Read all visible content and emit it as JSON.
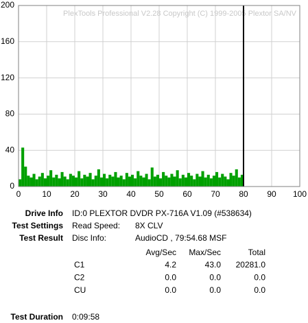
{
  "chart_data": {
    "type": "bar",
    "watermark": "PlexTools Professional V2.28 Copyright (C) 1999-2005 Plextor SA/NV",
    "x": [
      0.5,
      1.5,
      2.5,
      3.5,
      4.5,
      5.5,
      6.5,
      7.5,
      8.5,
      9.5,
      10.5,
      11.5,
      12.5,
      13.5,
      14.5,
      15.5,
      16.5,
      17.5,
      18.5,
      19.5,
      20.5,
      21.5,
      22.5,
      23.5,
      24.5,
      25.5,
      26.5,
      27.5,
      28.5,
      29.5,
      30.5,
      31.5,
      32.5,
      33.5,
      34.5,
      35.5,
      36.5,
      37.5,
      38.5,
      39.5,
      40.5,
      41.5,
      42.5,
      43.5,
      44.5,
      45.5,
      46.5,
      47.5,
      48.5,
      49.5,
      50.5,
      51.5,
      52.5,
      53.5,
      54.5,
      55.5,
      56.5,
      57.5,
      58.5,
      59.5,
      60.5,
      61.5,
      62.5,
      63.5,
      64.5,
      65.5,
      66.5,
      67.5,
      68.5,
      69.5,
      70.5,
      71.5,
      72.5,
      73.5,
      74.5,
      75.5,
      76.5,
      77.5,
      78.5,
      79.5
    ],
    "values": [
      8,
      43,
      22,
      12,
      10,
      14,
      8,
      11,
      15,
      9,
      12,
      18,
      10,
      13,
      9,
      16,
      11,
      8,
      14,
      12,
      10,
      17,
      9,
      13,
      11,
      15,
      8,
      12,
      19,
      10,
      14,
      9,
      13,
      11,
      16,
      10,
      12,
      8,
      15,
      11,
      13,
      9,
      17,
      12,
      10,
      14,
      8,
      21,
      11,
      13,
      9,
      16,
      12,
      10,
      14,
      11,
      18,
      9,
      13,
      10,
      15,
      12,
      8,
      14,
      11,
      17,
      10,
      13,
      9,
      12,
      16,
      10,
      14,
      11,
      8,
      15,
      12,
      19,
      10,
      13
    ],
    "color": "#00a000",
    "end_marker": 80,
    "xlim": [
      0,
      100
    ],
    "xticks": [
      0,
      10,
      20,
      30,
      40,
      50,
      60,
      70,
      80,
      90,
      100
    ],
    "ylim": [
      0,
      200
    ],
    "yticks": [
      0,
      40,
      80,
      120,
      160,
      200
    ],
    "grid": true
  },
  "info": {
    "drive_info": {
      "label": "Drive Info",
      "value": "ID:0 PLEXTOR DVDR PX-716A V1.09 (#538634)"
    },
    "test_settings": {
      "label": "Test Settings",
      "key": "Read Speed:",
      "value": "8X CLV"
    },
    "test_result": {
      "label": "Test Result",
      "key": "Disc Info:",
      "value": "AudioCD , 79:54.68 MSF"
    },
    "table": {
      "headers": [
        "Avg/Sec",
        "Max/Sec",
        "Total"
      ],
      "rows": [
        [
          "C1",
          "4.2",
          "43.0",
          "20281.0"
        ],
        [
          "C2",
          "0.0",
          "0.0",
          "0.0"
        ],
        [
          "CU",
          "0.0",
          "0.0",
          "0.0"
        ]
      ]
    },
    "test_duration": {
      "label": "Test Duration",
      "value": "0:09:58"
    }
  }
}
